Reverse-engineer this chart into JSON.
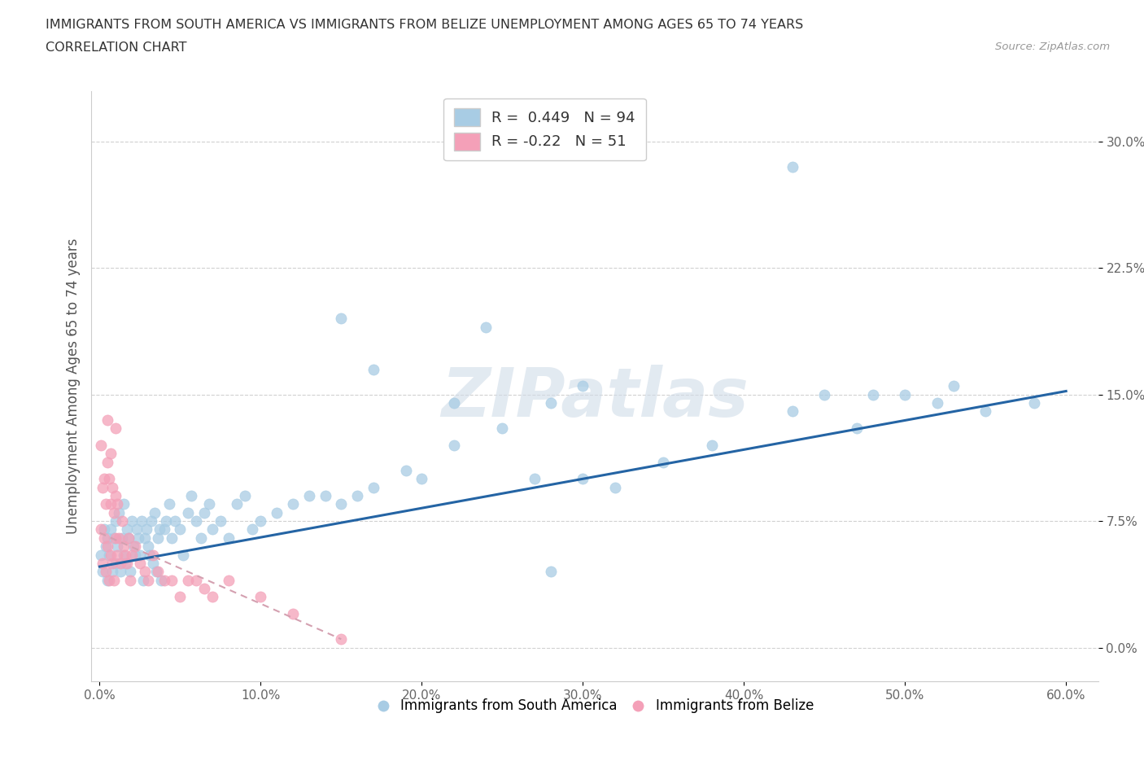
{
  "title_line1": "IMMIGRANTS FROM SOUTH AMERICA VS IMMIGRANTS FROM BELIZE UNEMPLOYMENT AMONG AGES 65 TO 74 YEARS",
  "title_line2": "CORRELATION CHART",
  "source": "Source: ZipAtlas.com",
  "ylabel": "Unemployment Among Ages 65 to 74 years",
  "xlim": [
    -0.005,
    0.62
  ],
  "ylim": [
    -0.02,
    0.33
  ],
  "xticks": [
    0.0,
    0.1,
    0.2,
    0.3,
    0.4,
    0.5,
    0.6
  ],
  "xticklabels": [
    "0.0%",
    "10.0%",
    "20.0%",
    "30.0%",
    "40.0%",
    "50.0%",
    "60.0%"
  ],
  "yticks": [
    0.0,
    0.075,
    0.15,
    0.225,
    0.3
  ],
  "yticklabels": [
    "0.0%",
    "7.5%",
    "15.0%",
    "22.5%",
    "30.0%"
  ],
  "blue_R": 0.449,
  "blue_N": 94,
  "pink_R": -0.22,
  "pink_N": 51,
  "blue_color": "#a8cce4",
  "pink_color": "#f4a0b8",
  "blue_line_color": "#2464a4",
  "pink_line_color": "#d4a0b0",
  "background_color": "#ffffff",
  "grid_color": "#cccccc",
  "watermark": "ZIPatlas",
  "blue_trend_x0": 0.0,
  "blue_trend_y0": 0.048,
  "blue_trend_x1": 0.6,
  "blue_trend_y1": 0.152,
  "pink_trend_x0": 0.0,
  "pink_trend_y0": 0.068,
  "pink_trend_x1": 0.15,
  "pink_trend_y1": 0.005,
  "blue_scatter_x": [
    0.001,
    0.002,
    0.003,
    0.004,
    0.005,
    0.005,
    0.006,
    0.007,
    0.008,
    0.009,
    0.01,
    0.01,
    0.011,
    0.012,
    0.013,
    0.014,
    0.015,
    0.015,
    0.016,
    0.017,
    0.018,
    0.019,
    0.02,
    0.021,
    0.022,
    0.023,
    0.024,
    0.025,
    0.026,
    0.027,
    0.028,
    0.029,
    0.03,
    0.031,
    0.032,
    0.033,
    0.034,
    0.035,
    0.036,
    0.037,
    0.038,
    0.04,
    0.041,
    0.043,
    0.045,
    0.047,
    0.05,
    0.052,
    0.055,
    0.057,
    0.06,
    0.063,
    0.065,
    0.068,
    0.07,
    0.075,
    0.08,
    0.085,
    0.09,
    0.095,
    0.1,
    0.11,
    0.12,
    0.13,
    0.14,
    0.15,
    0.16,
    0.17,
    0.19,
    0.2,
    0.22,
    0.24,
    0.27,
    0.3,
    0.32,
    0.35,
    0.38,
    0.43,
    0.45,
    0.48,
    0.5,
    0.52,
    0.53,
    0.55,
    0.58,
    0.15,
    0.17,
    0.22,
    0.43,
    0.47,
    0.25,
    0.28,
    0.28,
    0.3
  ],
  "blue_scatter_y": [
    0.055,
    0.045,
    0.07,
    0.06,
    0.04,
    0.065,
    0.055,
    0.07,
    0.045,
    0.065,
    0.05,
    0.075,
    0.06,
    0.08,
    0.045,
    0.065,
    0.055,
    0.085,
    0.05,
    0.07,
    0.065,
    0.045,
    0.075,
    0.06,
    0.055,
    0.07,
    0.065,
    0.055,
    0.075,
    0.04,
    0.065,
    0.07,
    0.06,
    0.055,
    0.075,
    0.05,
    0.08,
    0.045,
    0.065,
    0.07,
    0.04,
    0.07,
    0.075,
    0.085,
    0.065,
    0.075,
    0.07,
    0.055,
    0.08,
    0.09,
    0.075,
    0.065,
    0.08,
    0.085,
    0.07,
    0.075,
    0.065,
    0.085,
    0.09,
    0.07,
    0.075,
    0.08,
    0.085,
    0.09,
    0.09,
    0.085,
    0.09,
    0.095,
    0.105,
    0.1,
    0.12,
    0.19,
    0.1,
    0.1,
    0.095,
    0.11,
    0.12,
    0.14,
    0.15,
    0.15,
    0.15,
    0.145,
    0.155,
    0.14,
    0.145,
    0.195,
    0.165,
    0.145,
    0.285,
    0.13,
    0.13,
    0.045,
    0.145,
    0.155
  ],
  "pink_scatter_x": [
    0.001,
    0.001,
    0.002,
    0.002,
    0.003,
    0.003,
    0.004,
    0.004,
    0.005,
    0.005,
    0.005,
    0.006,
    0.006,
    0.007,
    0.007,
    0.007,
    0.008,
    0.008,
    0.009,
    0.009,
    0.01,
    0.01,
    0.01,
    0.011,
    0.011,
    0.012,
    0.013,
    0.014,
    0.015,
    0.016,
    0.017,
    0.018,
    0.019,
    0.02,
    0.022,
    0.025,
    0.028,
    0.03,
    0.033,
    0.036,
    0.04,
    0.045,
    0.05,
    0.055,
    0.06,
    0.065,
    0.07,
    0.08,
    0.1,
    0.12,
    0.15
  ],
  "pink_scatter_y": [
    0.07,
    0.12,
    0.05,
    0.095,
    0.065,
    0.1,
    0.045,
    0.085,
    0.06,
    0.11,
    0.135,
    0.04,
    0.1,
    0.055,
    0.085,
    0.115,
    0.05,
    0.095,
    0.04,
    0.08,
    0.065,
    0.09,
    0.13,
    0.055,
    0.085,
    0.065,
    0.05,
    0.075,
    0.06,
    0.055,
    0.05,
    0.065,
    0.04,
    0.055,
    0.06,
    0.05,
    0.045,
    0.04,
    0.055,
    0.045,
    0.04,
    0.04,
    0.03,
    0.04,
    0.04,
    0.035,
    0.03,
    0.04,
    0.03,
    0.02,
    0.005
  ]
}
